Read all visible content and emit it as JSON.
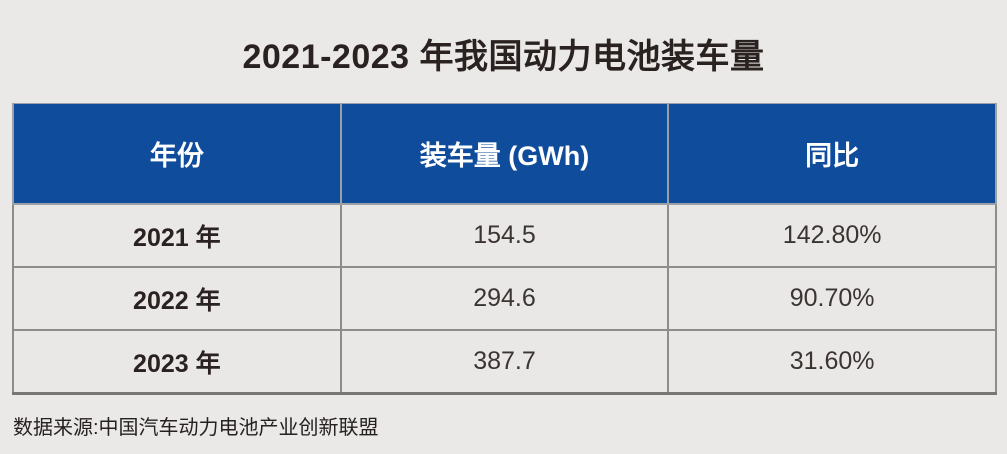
{
  "title": "2021-2023 年我国动力电池装车量",
  "source_note": "数据来源:中国汽车动力电池产业创新联盟",
  "table": {
    "columns": [
      "年份",
      "装车量 (GWh)",
      "同比"
    ],
    "rows": [
      {
        "year": "2021 年",
        "volume": "154.5",
        "yoy": "142.80%"
      },
      {
        "year": "2022 年",
        "volume": "294.6",
        "yoy": "90.70%"
      },
      {
        "year": "2023 年",
        "volume": "387.7",
        "yoy": "31.60%"
      }
    ]
  },
  "chart_data": {
    "type": "table",
    "title": "2021-2023 年我国动力电池装车量",
    "columns": [
      "年份",
      "装车量 (GWh)",
      "同比"
    ],
    "rows": [
      [
        "2021 年",
        154.5,
        "142.80%"
      ],
      [
        "2022 年",
        294.6,
        "90.70%"
      ],
      [
        "2023 年",
        387.7,
        "31.60%"
      ]
    ],
    "source": "数据来源:中国汽车动力电池产业创新联盟",
    "units": {
      "volume": "GWh",
      "yoy": "percent"
    }
  },
  "colors": {
    "page_bg": "#eae9e7",
    "header_bg": "#0f4c9c",
    "header_text": "#ffffff",
    "cell_bg": "#e9e8e6",
    "border": "#8e8b89",
    "bottom_border": "#7a7673",
    "title_text": "#2a2221",
    "cell_text": "#3b3432"
  }
}
